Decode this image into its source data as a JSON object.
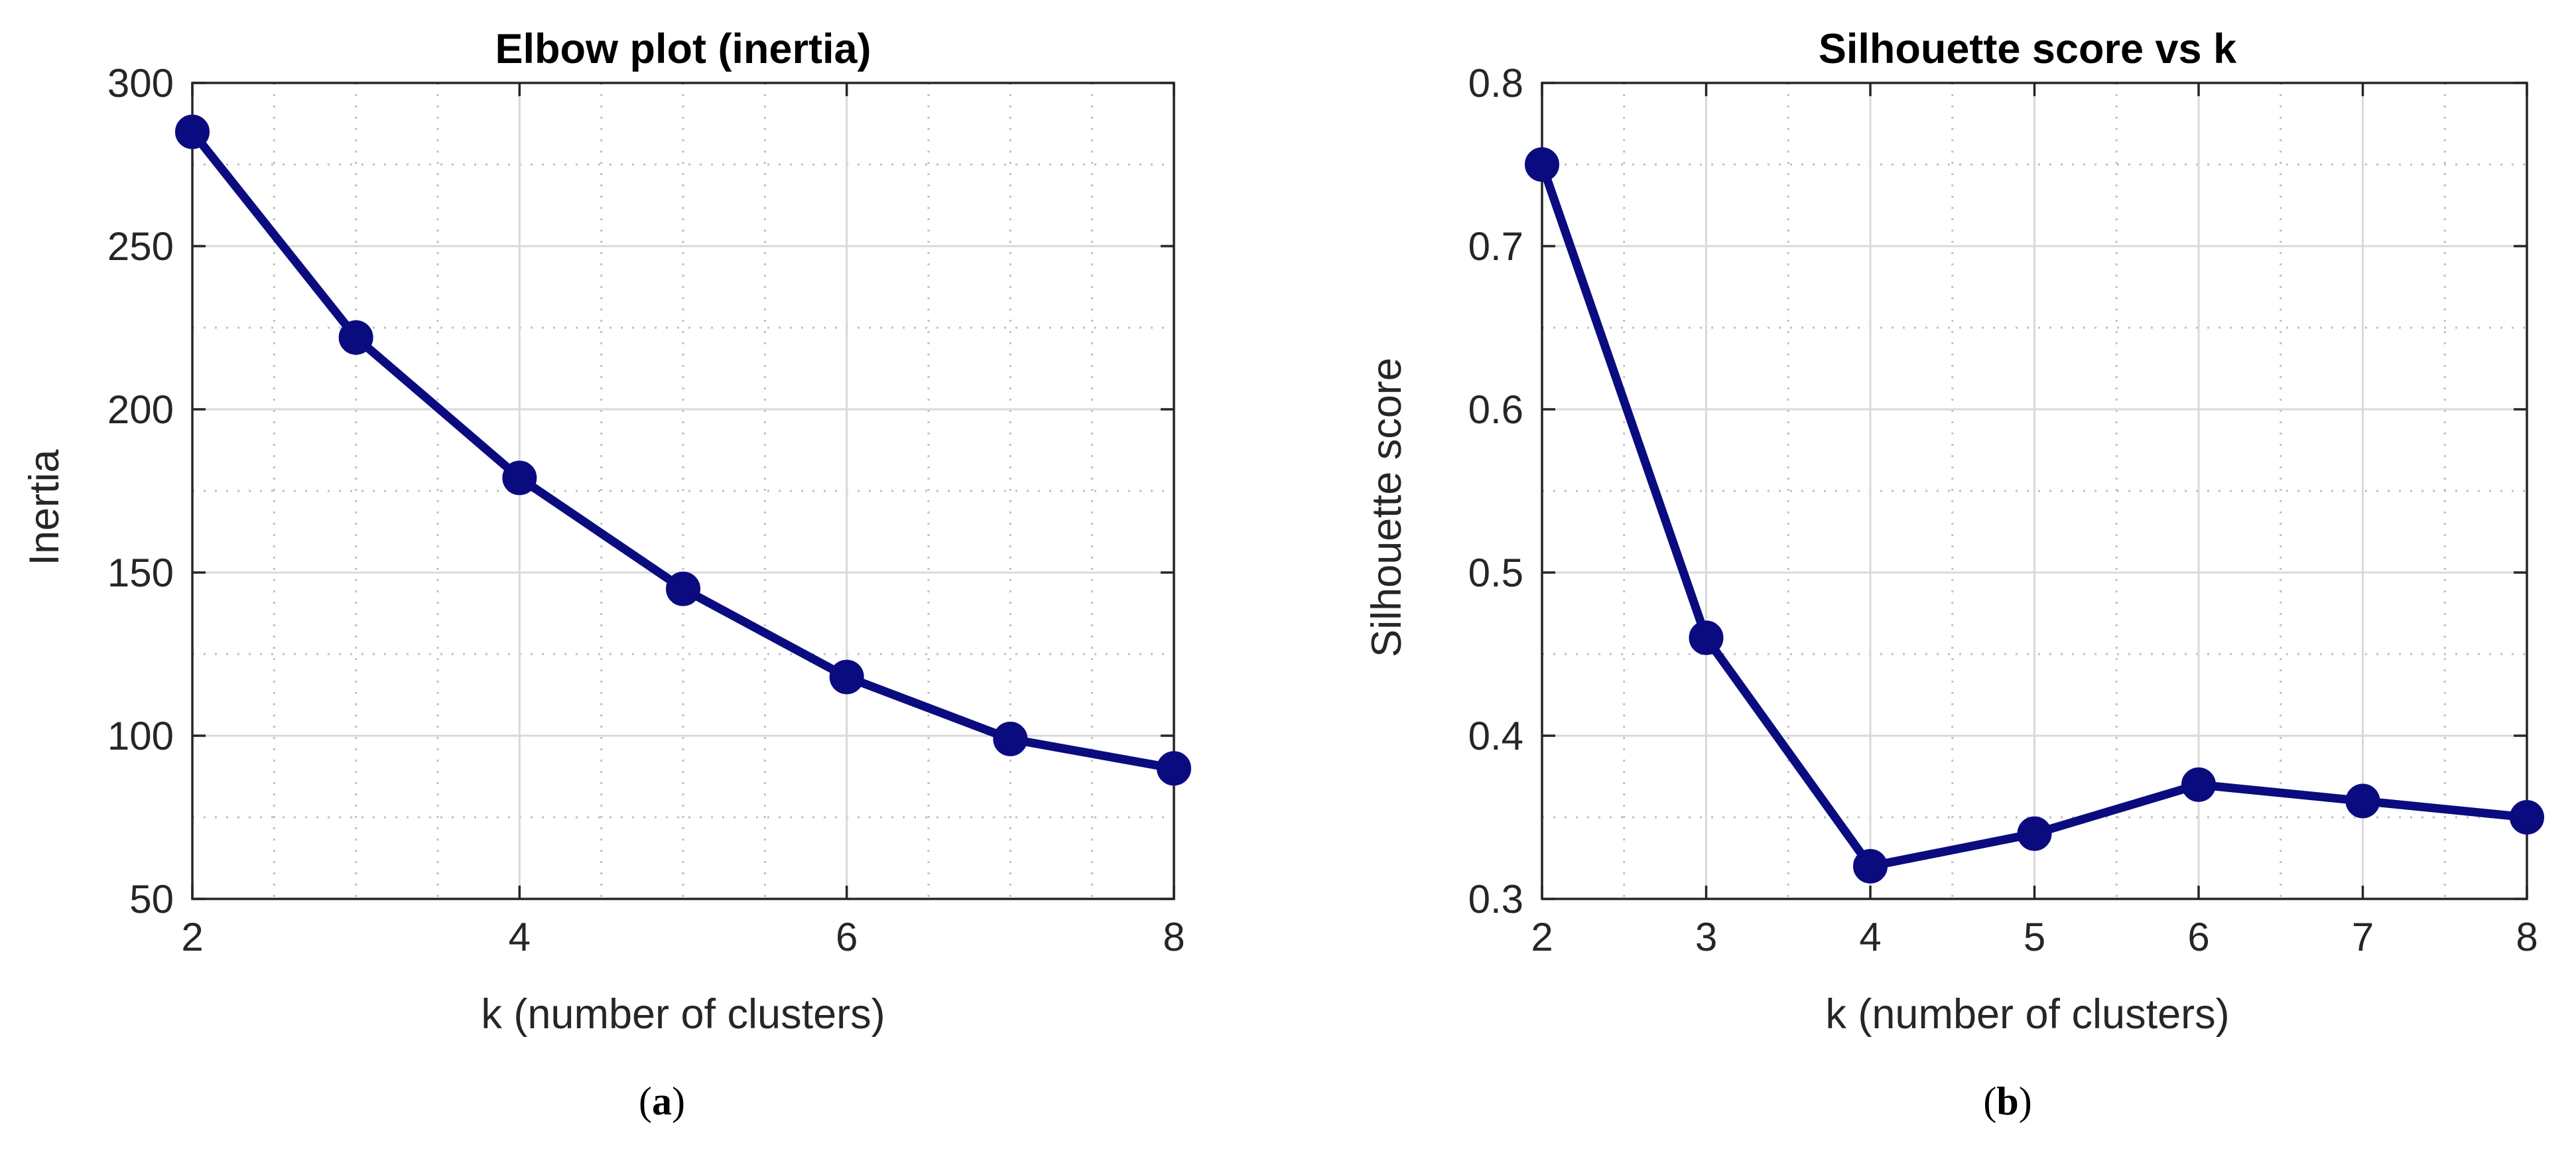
{
  "colors": {
    "series": "#0b0b80",
    "axis": "#262626",
    "grid_major": "#d9d9d9",
    "grid_minor": "#bfbfbf",
    "background": "#ffffff"
  },
  "chart_data": [
    {
      "id": "a",
      "type": "line",
      "title": "Elbow plot (inertia)",
      "xlabel": "k (number of clusters)",
      "ylabel": "Inertia",
      "x": [
        2,
        3,
        4,
        5,
        6,
        7,
        8
      ],
      "series": [
        {
          "name": "Inertia",
          "values": [
            285,
            222,
            179,
            145,
            118,
            99,
            90
          ]
        }
      ],
      "xlim": [
        2,
        8
      ],
      "ylim": [
        50,
        300
      ],
      "xticks": [
        2,
        4,
        6,
        8
      ],
      "xtick_labels": [
        "2",
        "4",
        "6",
        "8"
      ],
      "yticks": [
        50,
        100,
        150,
        200,
        250,
        300
      ],
      "ytick_labels": [
        "50",
        "100",
        "150",
        "200",
        "250",
        "300"
      ],
      "minor_x": [
        2.5,
        3,
        3.5,
        4.5,
        5,
        5.5,
        6.5,
        7,
        7.5
      ],
      "minor_y": [
        75,
        125,
        175,
        225,
        275
      ],
      "grid": true,
      "marker": "circle",
      "caption": {
        "open": "(",
        "letter": "a",
        "close": ")"
      }
    },
    {
      "id": "b",
      "type": "line",
      "title": "Silhouette score vs k",
      "xlabel": "k (number of clusters)",
      "ylabel": "Silhouette score",
      "x": [
        2,
        3,
        4,
        5,
        6,
        7,
        8
      ],
      "series": [
        {
          "name": "Silhouette score",
          "values": [
            0.75,
            0.46,
            0.32,
            0.34,
            0.37,
            0.36,
            0.35
          ]
        }
      ],
      "xlim": [
        2,
        8
      ],
      "ylim": [
        0.3,
        0.8
      ],
      "xticks": [
        2,
        3,
        4,
        5,
        6,
        7,
        8
      ],
      "xtick_labels": [
        "2",
        "3",
        "4",
        "5",
        "6",
        "7",
        "8"
      ],
      "yticks": [
        0.3,
        0.4,
        0.5,
        0.6,
        0.7,
        0.8
      ],
      "ytick_labels": [
        "0.3",
        "0.4",
        "0.5",
        "0.6",
        "0.7",
        "0.8"
      ],
      "minor_x": [
        2.5,
        3.5,
        4.5,
        5.5,
        6.5,
        7.5
      ],
      "minor_y": [
        0.35,
        0.45,
        0.55,
        0.65,
        0.75
      ],
      "grid": true,
      "marker": "circle",
      "caption": {
        "open": "(",
        "letter": "b",
        "close": ")"
      }
    }
  ]
}
